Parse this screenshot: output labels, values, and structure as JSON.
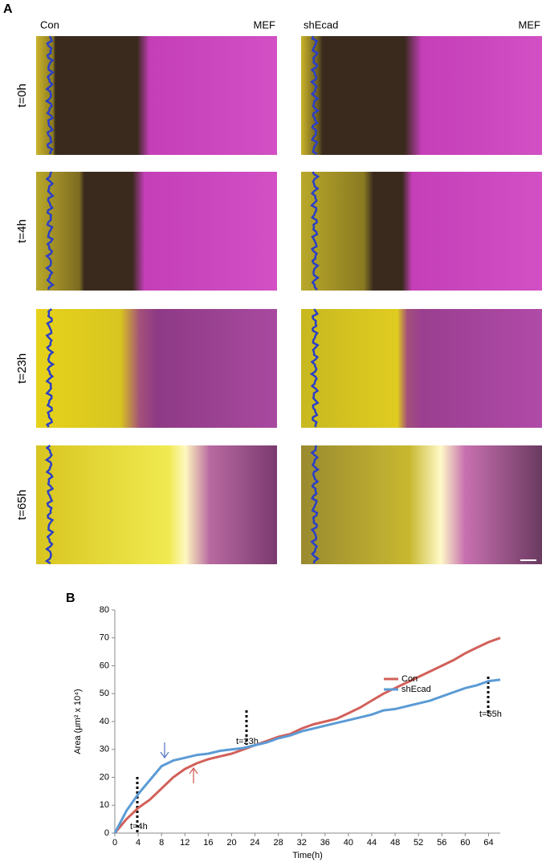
{
  "panel_a": {
    "label": "A",
    "columns": [
      {
        "left": "Con",
        "right": "MEF"
      },
      {
        "left": "shEcad",
        "right": "MEF"
      }
    ],
    "rows": [
      "t=0h",
      "t=4h",
      "t=23h",
      "t=65h"
    ]
  },
  "chart_data": {
    "type": "line",
    "panel_label": "B",
    "xlabel": "Time(h)",
    "ylabel": "Area (μm² x 10⁴)",
    "x": [
      0,
      2,
      4,
      6,
      8,
      10,
      12,
      14,
      16,
      18,
      20,
      22,
      24,
      26,
      28,
      30,
      32,
      34,
      36,
      38,
      40,
      42,
      44,
      46,
      48,
      50,
      52,
      54,
      56,
      58,
      60,
      62,
      64,
      66
    ],
    "series": [
      {
        "name": "Con",
        "color": "#d2605a",
        "values": [
          0,
          5,
          9,
          12,
          16,
          20,
          23,
          25,
          26.5,
          27.5,
          28.5,
          30,
          31.5,
          33,
          34.5,
          35.5,
          37.5,
          39,
          40,
          41,
          43,
          45,
          47.5,
          50,
          52,
          54,
          56,
          58,
          60,
          62,
          64.5,
          66.5,
          68.5,
          70
        ]
      },
      {
        "name": "shEcad",
        "color": "#5b9bd5",
        "values": [
          0,
          8,
          14,
          19,
          24,
          26,
          27,
          28,
          28.5,
          29.5,
          30,
          30.5,
          31.5,
          32.5,
          34,
          35,
          36.5,
          37.5,
          38.5,
          39.5,
          40.5,
          41.5,
          42.5,
          44,
          44.5,
          45.5,
          46.5,
          47.5,
          49,
          50.5,
          52,
          53,
          54.5,
          55
        ]
      }
    ],
    "xlim": [
      0,
      66
    ],
    "xticks": [
      0,
      4,
      8,
      12,
      16,
      20,
      24,
      28,
      32,
      36,
      40,
      44,
      48,
      52,
      56,
      60,
      64
    ],
    "ylim": [
      0,
      80
    ],
    "yticks": [
      0,
      10,
      20,
      30,
      40,
      50,
      60,
      70,
      80
    ],
    "annotations": [
      "t=4h",
      "t=23h",
      "t=65h"
    ],
    "legend": "right"
  }
}
